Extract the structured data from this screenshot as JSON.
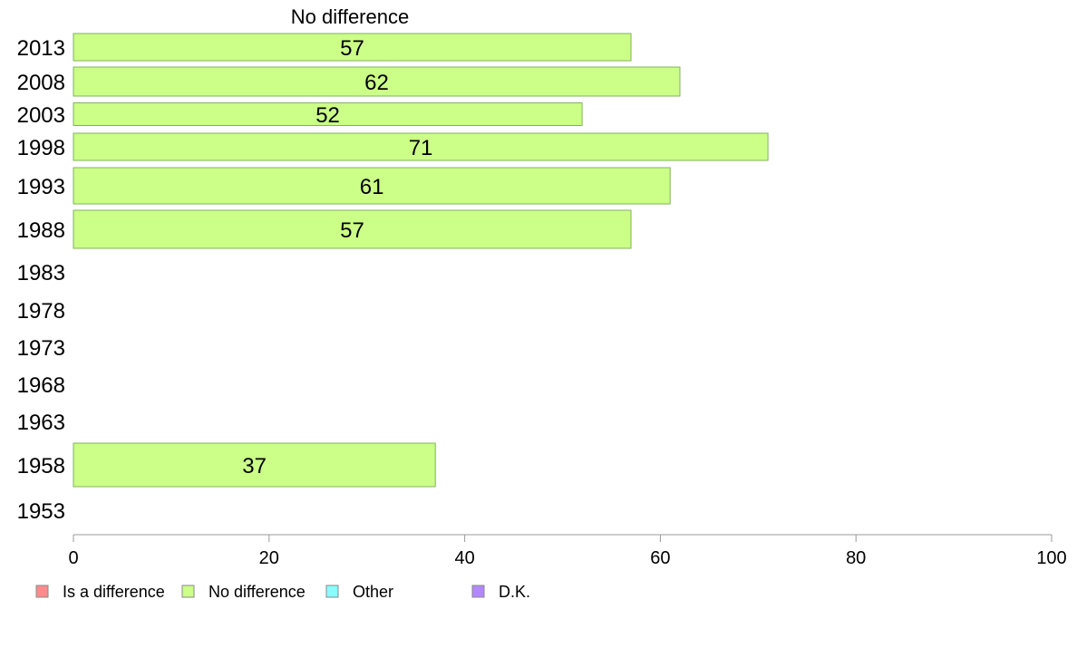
{
  "chart_data": {
    "type": "bar",
    "orientation": "horizontal",
    "series_title": "No difference",
    "categories": [
      "2013",
      "2008",
      "2003",
      "1998",
      "1993",
      "1988",
      "1983",
      "1978",
      "1973",
      "1968",
      "1963",
      "1958",
      "1953"
    ],
    "series": [
      {
        "name": "No difference",
        "values": [
          57,
          62,
          52,
          71,
          61,
          57,
          null,
          null,
          null,
          null,
          null,
          37,
          null
        ]
      }
    ],
    "xlim": [
      0,
      100
    ],
    "xticks": [
      0,
      20,
      40,
      60,
      80,
      100
    ],
    "grid": false,
    "legend": {
      "placement": "bottom-left",
      "entries": [
        "Is a difference",
        "No difference",
        "Other",
        "D.K."
      ]
    },
    "colors": {
      "Is a difference": "#ff8c8c",
      "No difference": "#ccff88",
      "Other": "#88ffff",
      "D.K.": "#b388ff",
      "bar_stroke": "#7fb35a",
      "axis": "#999999"
    }
  }
}
